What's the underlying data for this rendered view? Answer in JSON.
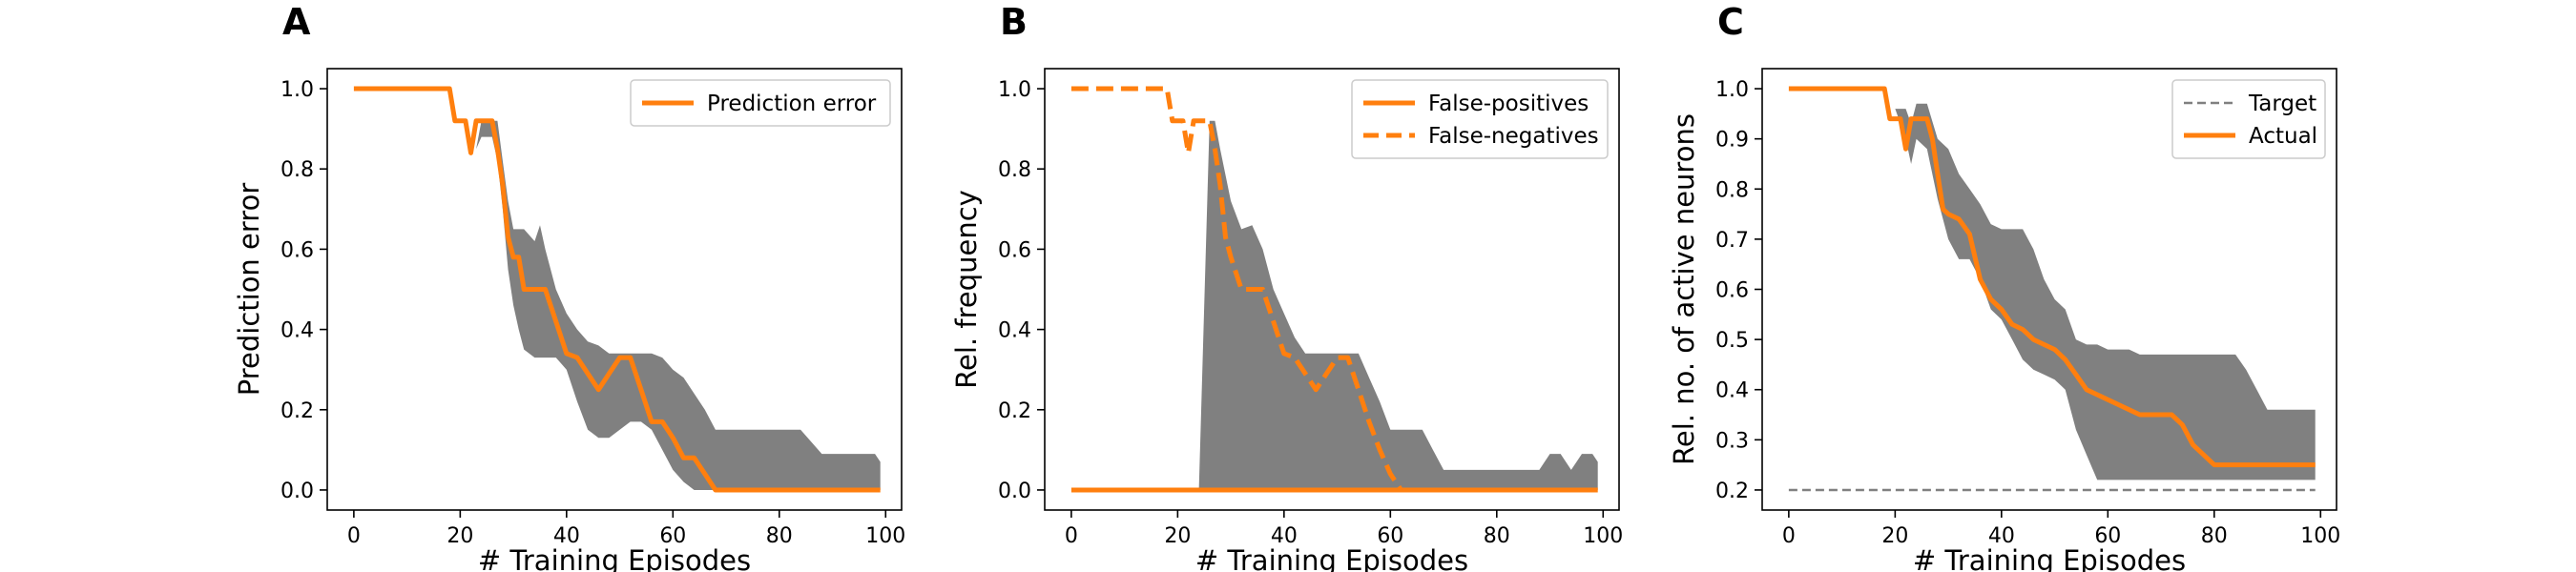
{
  "colors": {
    "series": "#ff7f0e",
    "band": "#808080",
    "target": "#808080",
    "axes": "#000000"
  },
  "chart_data": [
    {
      "type": "line",
      "panel": "A",
      "xlabel": "# Training Episodes",
      "ylabel": "Prediction error",
      "xlim": [
        -5,
        103
      ],
      "ylim": [
        -0.05,
        1.05
      ],
      "xticks": [
        0,
        20,
        40,
        60,
        80,
        100
      ],
      "yticks": [
        0.0,
        0.2,
        0.4,
        0.6,
        0.8,
        1.0
      ],
      "ytick_labels": [
        "0.0",
        "0.2",
        "0.4",
        "0.6",
        "0.8",
        "1.0"
      ],
      "legend_position": "top-right",
      "band": {
        "x": [
          0,
          18,
          20,
          22,
          23,
          24,
          26,
          27,
          28,
          29,
          30,
          31,
          32,
          34,
          35,
          36,
          38,
          40,
          42,
          44,
          46,
          48,
          50,
          52,
          54,
          56,
          58,
          60,
          62,
          64,
          66,
          68,
          70,
          72,
          74,
          76,
          78,
          80,
          82,
          84,
          86,
          88,
          90,
          92,
          94,
          96,
          98,
          99
        ],
        "upper": [
          1.0,
          1.0,
          0.92,
          0.92,
          0.85,
          0.92,
          0.92,
          0.92,
          0.82,
          0.72,
          0.65,
          0.65,
          0.65,
          0.62,
          0.66,
          0.6,
          0.5,
          0.44,
          0.4,
          0.37,
          0.36,
          0.34,
          0.34,
          0.34,
          0.34,
          0.34,
          0.33,
          0.3,
          0.28,
          0.24,
          0.2,
          0.15,
          0.15,
          0.15,
          0.15,
          0.15,
          0.15,
          0.15,
          0.15,
          0.15,
          0.12,
          0.09,
          0.09,
          0.09,
          0.09,
          0.09,
          0.09,
          0.07
        ],
        "lower": [
          1.0,
          1.0,
          0.92,
          0.92,
          0.85,
          0.88,
          0.88,
          0.82,
          0.7,
          0.55,
          0.46,
          0.4,
          0.35,
          0.33,
          0.33,
          0.33,
          0.33,
          0.3,
          0.22,
          0.15,
          0.13,
          0.13,
          0.15,
          0.17,
          0.17,
          0.15,
          0.1,
          0.05,
          0.02,
          0.0,
          0.0,
          0.0,
          0.0,
          0.0,
          0.0,
          0.0,
          0.0,
          0.0,
          0.0,
          0.0,
          0.0,
          0.0,
          0.0,
          0.0,
          0.0,
          0.0,
          0.0,
          0.0
        ]
      },
      "series": [
        {
          "name": "Prediction error",
          "style": "solid",
          "x": [
            0,
            18,
            19,
            21,
            22,
            23,
            24,
            26,
            27,
            28,
            29,
            30,
            31,
            32,
            34,
            36,
            38,
            40,
            42,
            44,
            46,
            48,
            50,
            52,
            54,
            56,
            58,
            60,
            62,
            64,
            66,
            68,
            99
          ],
          "y": [
            1.0,
            1.0,
            0.92,
            0.92,
            0.84,
            0.92,
            0.92,
            0.92,
            0.85,
            0.76,
            0.63,
            0.58,
            0.58,
            0.5,
            0.5,
            0.5,
            0.42,
            0.34,
            0.33,
            0.29,
            0.25,
            0.29,
            0.33,
            0.33,
            0.25,
            0.17,
            0.17,
            0.13,
            0.08,
            0.08,
            0.04,
            0.0,
            0.0
          ]
        }
      ]
    },
    {
      "type": "line",
      "panel": "B",
      "xlabel": "# Training Episodes",
      "ylabel": "Rel. frequency",
      "xlim": [
        -5,
        103
      ],
      "ylim": [
        -0.05,
        1.05
      ],
      "xticks": [
        0,
        20,
        40,
        60,
        80,
        100
      ],
      "yticks": [
        0.0,
        0.2,
        0.4,
        0.6,
        0.8,
        1.0
      ],
      "ytick_labels": [
        "0.0",
        "0.2",
        "0.4",
        "0.6",
        "0.8",
        "1.0"
      ],
      "legend_position": "top-right",
      "band": {
        "x": [
          0,
          18,
          20,
          22,
          23,
          24,
          26,
          27,
          28,
          30,
          32,
          34,
          36,
          38,
          40,
          42,
          44,
          46,
          48,
          50,
          52,
          54,
          56,
          58,
          60,
          62,
          64,
          66,
          68,
          70,
          72,
          74,
          76,
          78,
          80,
          82,
          84,
          86,
          88,
          90,
          92,
          94,
          96,
          98,
          99
        ],
        "upper": [
          0.0,
          0.0,
          0.0,
          0.0,
          0.0,
          0.0,
          0.92,
          0.92,
          0.85,
          0.72,
          0.65,
          0.66,
          0.6,
          0.5,
          0.44,
          0.38,
          0.34,
          0.34,
          0.34,
          0.34,
          0.34,
          0.34,
          0.28,
          0.22,
          0.15,
          0.15,
          0.15,
          0.15,
          0.1,
          0.05,
          0.05,
          0.05,
          0.05,
          0.05,
          0.05,
          0.05,
          0.05,
          0.05,
          0.05,
          0.09,
          0.09,
          0.05,
          0.09,
          0.09,
          0.07
        ],
        "lower": [
          0.0,
          0.0,
          0.0,
          0.0,
          0.0,
          0.0,
          0.0,
          0.0,
          0.0,
          0.0,
          0.0,
          0.0,
          0.0,
          0.0,
          0.0,
          0.0,
          0.0,
          0.0,
          0.0,
          0.0,
          0.0,
          0.0,
          0.0,
          0.0,
          0.0,
          0.0,
          0.0,
          0.0,
          0.0,
          0.0,
          0.0,
          0.0,
          0.0,
          0.0,
          0.0,
          0.0,
          0.0,
          0.0,
          0.0,
          0.0,
          0.0,
          0.0,
          0.0,
          0.0,
          0.0
        ]
      },
      "series": [
        {
          "name": "False-positives",
          "style": "solid",
          "x": [
            0,
            99
          ],
          "y": [
            0.0,
            0.0
          ]
        },
        {
          "name": "False-negatives",
          "style": "dashed",
          "x": [
            0,
            18,
            19,
            21,
            22,
            23,
            24,
            26,
            27,
            28,
            29,
            30,
            32,
            34,
            36,
            38,
            40,
            42,
            44,
            46,
            48,
            50,
            52,
            54,
            56,
            58,
            60,
            62
          ],
          "y": [
            1.0,
            1.0,
            0.92,
            0.92,
            0.84,
            0.92,
            0.92,
            0.92,
            0.85,
            0.76,
            0.63,
            0.58,
            0.5,
            0.5,
            0.5,
            0.42,
            0.34,
            0.33,
            0.29,
            0.25,
            0.29,
            0.33,
            0.33,
            0.25,
            0.17,
            0.1,
            0.04,
            0.0
          ]
        }
      ]
    },
    {
      "type": "line",
      "panel": "C",
      "xlabel": "# Training Episodes",
      "ylabel": "Rel. no. of active neurons",
      "xlim": [
        -5,
        103
      ],
      "ylim": [
        0.16,
        1.04
      ],
      "xticks": [
        0,
        20,
        40,
        60,
        80,
        100
      ],
      "yticks": [
        0.2,
        0.3,
        0.4,
        0.5,
        0.6,
        0.7,
        0.8,
        0.9,
        1.0
      ],
      "ytick_labels": [
        "0.2",
        "0.3",
        "0.4",
        "0.5",
        "0.6",
        "0.7",
        "0.8",
        "0.9",
        "1.0"
      ],
      "legend_position": "top-right",
      "band": {
        "x": [
          0,
          18,
          20,
          22,
          23,
          24,
          26,
          28,
          30,
          32,
          34,
          36,
          38,
          40,
          42,
          44,
          46,
          48,
          50,
          52,
          54,
          56,
          58,
          60,
          62,
          64,
          66,
          68,
          70,
          72,
          74,
          76,
          78,
          80,
          82,
          84,
          86,
          88,
          90,
          92,
          94,
          96,
          98,
          99
        ],
        "upper": [
          1.0,
          1.0,
          0.96,
          0.96,
          0.93,
          0.97,
          0.97,
          0.9,
          0.88,
          0.83,
          0.8,
          0.77,
          0.73,
          0.72,
          0.72,
          0.72,
          0.68,
          0.62,
          0.58,
          0.56,
          0.5,
          0.49,
          0.49,
          0.48,
          0.48,
          0.48,
          0.47,
          0.47,
          0.47,
          0.47,
          0.47,
          0.47,
          0.47,
          0.47,
          0.47,
          0.47,
          0.44,
          0.4,
          0.36,
          0.36,
          0.36,
          0.36,
          0.36,
          0.36
        ],
        "lower": [
          1.0,
          1.0,
          0.96,
          0.9,
          0.85,
          0.9,
          0.88,
          0.78,
          0.7,
          0.66,
          0.66,
          0.62,
          0.56,
          0.54,
          0.5,
          0.46,
          0.44,
          0.43,
          0.42,
          0.4,
          0.32,
          0.27,
          0.22,
          0.22,
          0.22,
          0.22,
          0.22,
          0.22,
          0.22,
          0.22,
          0.22,
          0.22,
          0.22,
          0.22,
          0.22,
          0.22,
          0.22,
          0.22,
          0.22,
          0.22,
          0.22,
          0.22,
          0.22,
          0.22
        ]
      },
      "series": [
        {
          "name": "Target",
          "style": "dashed",
          "x": [
            0,
            99
          ],
          "y": [
            0.2,
            0.2
          ]
        },
        {
          "name": "Actual",
          "style": "solid",
          "x": [
            0,
            18,
            19,
            21,
            22,
            23,
            24,
            26,
            27,
            28,
            29,
            30,
            32,
            34,
            36,
            38,
            40,
            42,
            44,
            46,
            48,
            50,
            52,
            54,
            56,
            58,
            60,
            62,
            64,
            66,
            68,
            70,
            72,
            74,
            76,
            80,
            85,
            90,
            95,
            99
          ],
          "y": [
            1.0,
            1.0,
            0.94,
            0.94,
            0.88,
            0.94,
            0.94,
            0.94,
            0.9,
            0.83,
            0.76,
            0.75,
            0.74,
            0.71,
            0.62,
            0.58,
            0.56,
            0.53,
            0.52,
            0.5,
            0.49,
            0.48,
            0.46,
            0.43,
            0.4,
            0.39,
            0.38,
            0.37,
            0.36,
            0.35,
            0.35,
            0.35,
            0.35,
            0.33,
            0.29,
            0.25,
            0.25,
            0.25,
            0.25,
            0.25
          ]
        }
      ]
    }
  ]
}
